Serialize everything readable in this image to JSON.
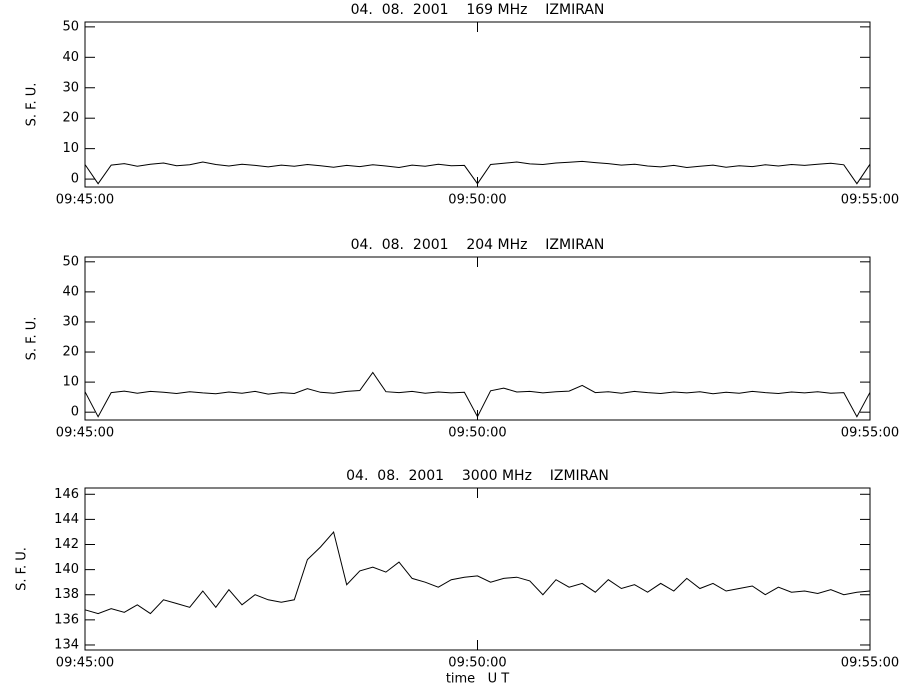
{
  "chart_data": [
    {
      "type": "line",
      "title": "04.  08.  2001    169 MHz    IZMIRAN",
      "y_label": "S. F. U.",
      "x": [
        "09:45:00",
        "09:45:10",
        "09:45:20",
        "09:45:30",
        "09:45:40",
        "09:45:50",
        "09:46:00",
        "09:46:10",
        "09:46:20",
        "09:46:30",
        "09:46:40",
        "09:46:50",
        "09:47:00",
        "09:47:10",
        "09:47:20",
        "09:47:30",
        "09:47:40",
        "09:47:50",
        "09:48:00",
        "09:48:10",
        "09:48:20",
        "09:48:30",
        "09:48:40",
        "09:48:50",
        "09:49:00",
        "09:49:10",
        "09:49:20",
        "09:49:30",
        "09:49:40",
        "09:49:50",
        "09:50:00",
        "09:50:10",
        "09:50:20",
        "09:50:30",
        "09:50:40",
        "09:50:50",
        "09:51:00",
        "09:51:10",
        "09:51:20",
        "09:51:30",
        "09:51:40",
        "09:51:50",
        "09:52:00",
        "09:52:10",
        "09:52:20",
        "09:52:30",
        "09:52:40",
        "09:52:50",
        "09:53:00",
        "09:53:10",
        "09:53:20",
        "09:53:30",
        "09:53:40",
        "09:53:50",
        "09:54:00",
        "09:54:10",
        "09:54:20",
        "09:54:30",
        "09:54:40",
        "09:54:50",
        "09:55:00"
      ],
      "series": [
        {
          "color": "#000000",
          "values": [
            4.8,
            -1.5,
            4.6,
            5.1,
            4.2,
            4.9,
            5.3,
            4.4,
            4.7,
            5.6,
            4.8,
            4.3,
            4.9,
            4.5,
            4.0,
            4.6,
            4.2,
            4.8,
            4.4,
            3.9,
            4.5,
            4.1,
            4.7,
            4.3,
            3.8,
            4.6,
            4.2,
            4.9,
            4.4,
            4.5,
            -1.5,
            4.8,
            5.2,
            5.6,
            5.0,
            4.8,
            5.3,
            5.5,
            5.8,
            5.4,
            5.1,
            4.6,
            4.9,
            4.3,
            4.0,
            4.5,
            3.8,
            4.2,
            4.6,
            3.9,
            4.4,
            4.1,
            4.7,
            4.3,
            4.8,
            4.5,
            4.9,
            5.2,
            4.7,
            -1.5,
            4.9
          ]
        }
      ],
      "xlim": [
        "09:45:00",
        "09:55:00"
      ],
      "xticks": [
        "09:45:00",
        "09:50:00",
        "09:55:00"
      ],
      "ylim": [
        -2.6,
        51.6
      ],
      "yticks": [
        0,
        10,
        20,
        30,
        40,
        50
      ]
    },
    {
      "type": "line",
      "title": "04.  08.  2001    204 MHz    IZMIRAN",
      "y_label": "S. F. U.",
      "x": [
        "09:45:00",
        "09:45:10",
        "09:45:20",
        "09:45:30",
        "09:45:40",
        "09:45:50",
        "09:46:00",
        "09:46:10",
        "09:46:20",
        "09:46:30",
        "09:46:40",
        "09:46:50",
        "09:47:00",
        "09:47:10",
        "09:47:20",
        "09:47:30",
        "09:47:40",
        "09:47:50",
        "09:48:00",
        "09:48:10",
        "09:48:20",
        "09:48:30",
        "09:48:40",
        "09:48:50",
        "09:49:00",
        "09:49:10",
        "09:49:20",
        "09:49:30",
        "09:49:40",
        "09:49:50",
        "09:50:00",
        "09:50:10",
        "09:50:20",
        "09:50:30",
        "09:50:40",
        "09:50:50",
        "09:51:00",
        "09:51:10",
        "09:51:20",
        "09:51:30",
        "09:51:40",
        "09:51:50",
        "09:52:00",
        "09:52:10",
        "09:52:20",
        "09:52:30",
        "09:52:40",
        "09:52:50",
        "09:53:00",
        "09:53:10",
        "09:53:20",
        "09:53:30",
        "09:53:40",
        "09:53:50",
        "09:54:00",
        "09:54:10",
        "09:54:20",
        "09:54:30",
        "09:54:40",
        "09:54:50",
        "09:55:00"
      ],
      "series": [
        {
          "color": "#000000",
          "values": [
            6.8,
            -1.5,
            6.5,
            7.0,
            6.3,
            6.9,
            6.6,
            6.2,
            6.8,
            6.4,
            6.1,
            6.7,
            6.3,
            6.9,
            6.0,
            6.5,
            6.2,
            7.8,
            6.6,
            6.3,
            6.9,
            7.2,
            13.2,
            6.8,
            6.5,
            6.9,
            6.3,
            6.7,
            6.4,
            6.6,
            -1.5,
            7.1,
            8.0,
            6.7,
            6.9,
            6.4,
            6.8,
            7.0,
            8.9,
            6.5,
            6.8,
            6.3,
            6.9,
            6.5,
            6.2,
            6.7,
            6.4,
            6.8,
            6.1,
            6.6,
            6.3,
            6.9,
            6.5,
            6.2,
            6.7,
            6.4,
            6.8,
            6.3,
            6.5,
            -1.5,
            6.6
          ]
        }
      ],
      "xlim": [
        "09:45:00",
        "09:55:00"
      ],
      "xticks": [
        "09:45:00",
        "09:50:00",
        "09:55:00"
      ],
      "ylim": [
        -2.6,
        51.6
      ],
      "yticks": [
        0,
        10,
        20,
        30,
        40,
        50
      ]
    },
    {
      "type": "line",
      "title": "04.  08.  2001    3000 MHz    IZMIRAN",
      "y_label": "S. F. U.",
      "x_label": "time   U T",
      "x": [
        "09:45:00",
        "09:45:10",
        "09:45:20",
        "09:45:30",
        "09:45:40",
        "09:45:50",
        "09:46:00",
        "09:46:10",
        "09:46:20",
        "09:46:30",
        "09:46:40",
        "09:46:50",
        "09:47:00",
        "09:47:10",
        "09:47:20",
        "09:47:30",
        "09:47:40",
        "09:47:50",
        "09:48:00",
        "09:48:10",
        "09:48:20",
        "09:48:30",
        "09:48:40",
        "09:48:50",
        "09:49:00",
        "09:49:10",
        "09:49:20",
        "09:49:30",
        "09:49:40",
        "09:49:50",
        "09:50:00",
        "09:50:10",
        "09:50:20",
        "09:50:30",
        "09:50:40",
        "09:50:50",
        "09:51:00",
        "09:51:10",
        "09:51:20",
        "09:51:30",
        "09:51:40",
        "09:51:50",
        "09:52:00",
        "09:52:10",
        "09:52:20",
        "09:52:30",
        "09:52:40",
        "09:52:50",
        "09:53:00",
        "09:53:10",
        "09:53:20",
        "09:53:30",
        "09:53:40",
        "09:53:50",
        "09:54:00",
        "09:54:10",
        "09:54:20",
        "09:54:30",
        "09:54:40",
        "09:54:50",
        "09:55:00"
      ],
      "series": [
        {
          "color": "#000000",
          "values": [
            136.8,
            136.5,
            136.9,
            136.6,
            137.2,
            136.5,
            137.6,
            137.3,
            137.0,
            138.3,
            137.0,
            138.4,
            137.2,
            138.0,
            137.6,
            137.4,
            137.6,
            140.8,
            141.8,
            143.0,
            138.8,
            139.9,
            140.2,
            139.8,
            140.6,
            139.3,
            139.0,
            138.6,
            139.2,
            139.4,
            139.5,
            139.0,
            139.3,
            139.4,
            139.1,
            138.0,
            139.2,
            138.6,
            138.9,
            138.2,
            139.2,
            138.5,
            138.8,
            138.2,
            138.9,
            138.3,
            139.3,
            138.5,
            138.9,
            138.3,
            138.5,
            138.7,
            138.0,
            138.6,
            138.2,
            138.3,
            138.1,
            138.4,
            138.0,
            138.2,
            138.3
          ]
        }
      ],
      "xlim": [
        "09:45:00",
        "09:55:00"
      ],
      "xticks": [
        "09:45:00",
        "09:50:00",
        "09:55:00"
      ],
      "ylim": [
        133.6,
        146.5
      ],
      "yticks": [
        134,
        136,
        138,
        140,
        142,
        144,
        146
      ]
    }
  ]
}
